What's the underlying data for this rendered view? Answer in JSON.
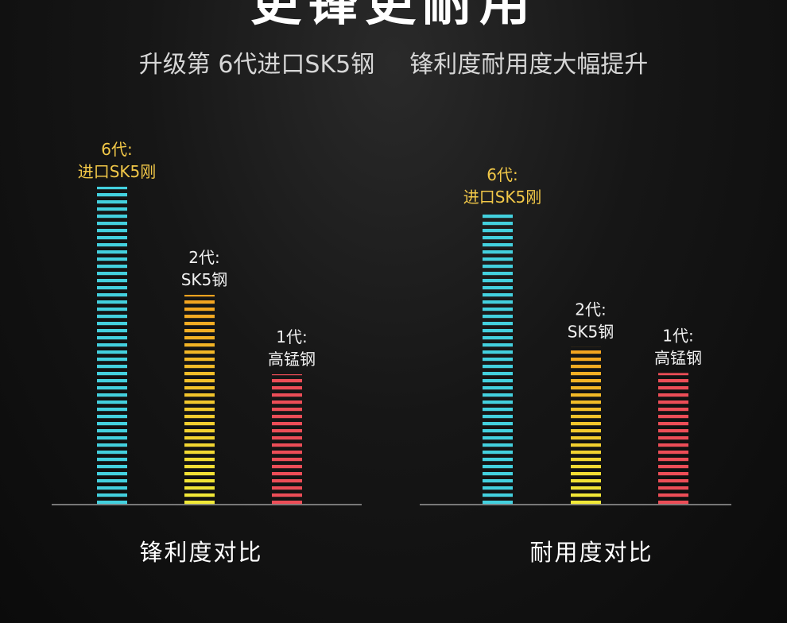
{
  "headline": "更锋更耐用",
  "subtitle": {
    "left": "升级第 6代进口SK5钢",
    "right": "锋利度耐用度大幅提升"
  },
  "colors": {
    "gen6": "#43d0de",
    "gen2_top": "#f3a21f",
    "gen2_bottom": "#f1ea38",
    "gen1": "#ec4d57",
    "gen6_label": "#f2c848",
    "other_label": "#f0f0f0",
    "axis": "#9a9a9a"
  },
  "chart_data": [
    {
      "type": "bar",
      "title": "锋利度对比",
      "categories": [
        "6代: 进口SK5刚",
        "2代: SK5钢",
        "1代: 高锰钢"
      ],
      "values": [
        100,
        66,
        41
      ],
      "label_lines": [
        [
          "6代:",
          "进口SK5刚"
        ],
        [
          "2代:",
          "SK5钢"
        ],
        [
          "1代:",
          "高锰钢"
        ]
      ],
      "grid": false,
      "legend": "none"
    },
    {
      "type": "bar",
      "title": "耐用度对比",
      "categories": [
        "6代: 进口SK5刚",
        "2代: SK5钢",
        "1代: 高锰钢"
      ],
      "values": [
        100,
        54,
        45
      ],
      "label_lines": [
        [
          "6代:",
          "进口SK5刚"
        ],
        [
          "2代:",
          "SK5钢"
        ],
        [
          "1代:",
          "高锰钢"
        ]
      ],
      "grid": false,
      "legend": "none"
    }
  ]
}
